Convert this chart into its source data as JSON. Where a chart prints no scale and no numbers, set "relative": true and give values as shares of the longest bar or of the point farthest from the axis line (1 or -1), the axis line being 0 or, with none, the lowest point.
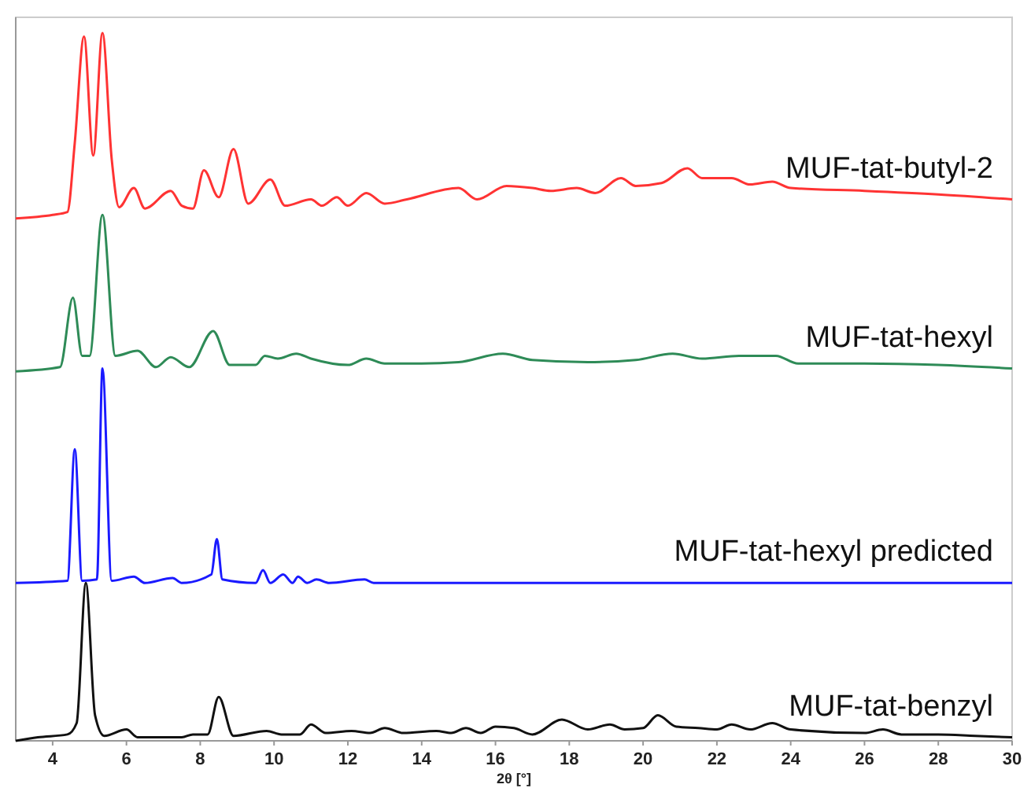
{
  "chart_data": {
    "type": "line",
    "relative": true,
    "xlabel": "2θ [°]",
    "xlim": [
      3,
      30
    ],
    "xticks": [
      4,
      6,
      8,
      10,
      12,
      14,
      16,
      18,
      20,
      22,
      24,
      26,
      28,
      30
    ],
    "grid": false,
    "legend": false,
    "line_style": "solid",
    "series": [
      {
        "name": "MUF-tat-butyl-2",
        "color": "#ff3333",
        "x": [
          3,
          4,
          4.4,
          4.6,
          4.85,
          5.1,
          5.35,
          5.6,
          5.8,
          6.2,
          6.5,
          7.2,
          7.5,
          7.8,
          8.1,
          8.5,
          8.9,
          9.3,
          9.9,
          10.3,
          11.0,
          11.3,
          11.7,
          12.0,
          12.5,
          13.0,
          13.6,
          15.0,
          15.5,
          16.3,
          17.0,
          17.5,
          18.2,
          18.7,
          19.4,
          19.8,
          20.5,
          21.2,
          21.6,
          22.4,
          22.9,
          23.5,
          24.0,
          26,
          28,
          30
        ],
        "values": [
          0.738,
          0.743,
          0.747,
          0.845,
          0.995,
          0.827,
          1.0,
          0.822,
          0.754,
          0.781,
          0.752,
          0.777,
          0.756,
          0.752,
          0.806,
          0.768,
          0.836,
          0.759,
          0.793,
          0.756,
          0.765,
          0.756,
          0.768,
          0.756,
          0.774,
          0.759,
          0.765,
          0.781,
          0.765,
          0.784,
          0.781,
          0.777,
          0.781,
          0.774,
          0.795,
          0.784,
          0.788,
          0.809,
          0.795,
          0.795,
          0.786,
          0.79,
          0.781,
          0.777,
          0.772,
          0.765
        ]
      },
      {
        "name": "MUF-tat-hexyl",
        "color": "#2e8b57",
        "x": [
          3,
          4.2,
          4.55,
          4.8,
          5.0,
          5.35,
          5.7,
          6.3,
          6.8,
          7.2,
          7.7,
          8.35,
          8.8,
          9.5,
          9.75,
          10.1,
          10.6,
          11.0,
          12.0,
          12.5,
          13.0,
          14.0,
          15.0,
          16.2,
          17.0,
          18.5,
          19.8,
          20.8,
          21.6,
          22.6,
          23.6,
          24.2,
          26,
          28,
          30
        ],
        "values": [
          0.522,
          0.528,
          0.626,
          0.544,
          0.544,
          0.743,
          0.544,
          0.551,
          0.528,
          0.542,
          0.528,
          0.579,
          0.531,
          0.531,
          0.544,
          0.54,
          0.547,
          0.54,
          0.531,
          0.54,
          0.533,
          0.533,
          0.535,
          0.547,
          0.538,
          0.535,
          0.538,
          0.547,
          0.54,
          0.544,
          0.544,
          0.533,
          0.533,
          0.531,
          0.526
        ]
      },
      {
        "name": "MUF-tat-hexyl predicted",
        "color": "#1a1aff",
        "x": [
          3,
          4.4,
          4.6,
          4.8,
          5.2,
          5.35,
          5.6,
          6.2,
          6.5,
          7.25,
          7.5,
          8.3,
          8.45,
          8.6,
          9.5,
          9.7,
          9.9,
          10.25,
          10.5,
          10.65,
          10.9,
          11.15,
          11.5,
          12.45,
          12.7,
          30
        ],
        "values": [
          0.223,
          0.226,
          0.412,
          0.226,
          0.228,
          0.526,
          0.226,
          0.232,
          0.223,
          0.23,
          0.223,
          0.235,
          0.285,
          0.228,
          0.223,
          0.241,
          0.223,
          0.235,
          0.223,
          0.232,
          0.223,
          0.228,
          0.223,
          0.228,
          0.223,
          0.223
        ]
      },
      {
        "name": "MUF-tat-benzyl",
        "color": "#111111",
        "x": [
          3,
          3.6,
          4.4,
          4.65,
          4.9,
          5.15,
          5.4,
          6.0,
          6.3,
          7.5,
          7.8,
          8.2,
          8.5,
          8.9,
          9.8,
          10.2,
          10.7,
          11.0,
          11.4,
          12.1,
          12.6,
          13.0,
          13.5,
          14.4,
          14.8,
          15.2,
          15.6,
          16.0,
          16.5,
          17.0,
          17.8,
          18.5,
          19.1,
          19.5,
          20.0,
          20.4,
          20.9,
          21.5,
          22.0,
          22.4,
          22.9,
          23.5,
          24.0,
          26,
          26.5,
          27,
          28,
          29,
          30
        ],
        "values": [
          0,
          0.005,
          0.009,
          0.025,
          0.223,
          0.036,
          0.007,
          0.016,
          0.005,
          0.005,
          0.009,
          0.009,
          0.062,
          0.007,
          0.014,
          0.009,
          0.009,
          0.023,
          0.011,
          0.014,
          0.011,
          0.018,
          0.011,
          0.014,
          0.011,
          0.018,
          0.011,
          0.02,
          0.018,
          0.009,
          0.03,
          0.016,
          0.023,
          0.016,
          0.018,
          0.036,
          0.02,
          0.018,
          0.016,
          0.023,
          0.016,
          0.025,
          0.016,
          0.011,
          0.016,
          0.009,
          0.009,
          0.007,
          0.005
        ]
      }
    ]
  }
}
